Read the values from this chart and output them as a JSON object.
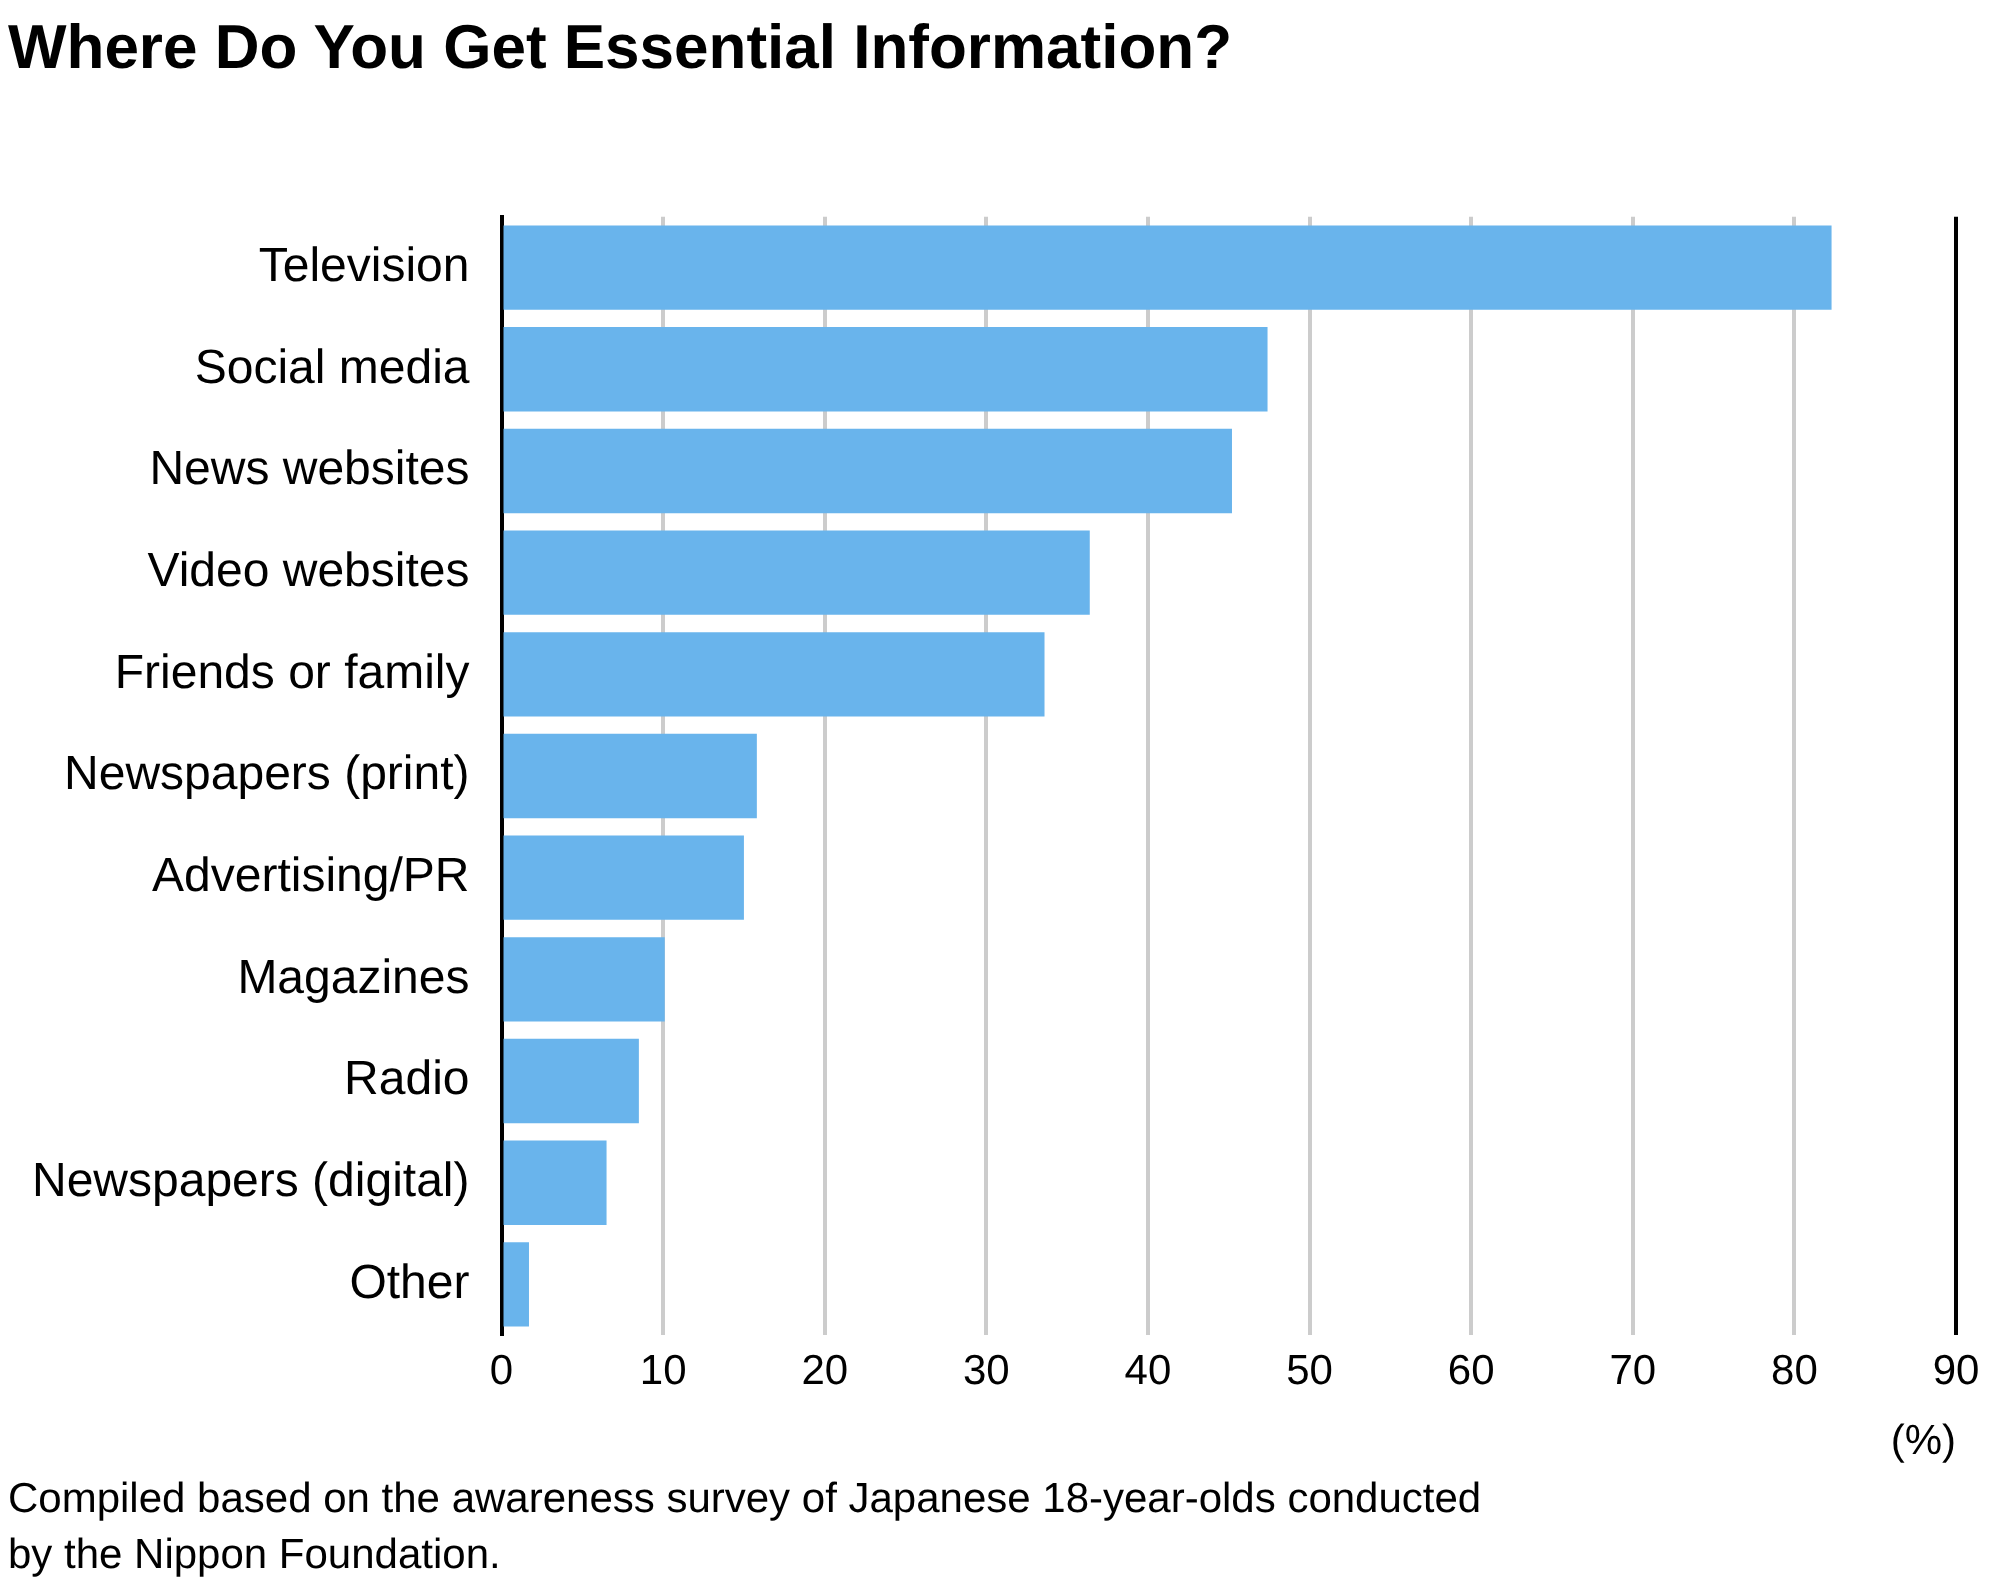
{
  "chart_data": {
    "type": "bar",
    "orientation": "horizontal",
    "title": "Where Do You Get Essential Information?",
    "xlabel": "(%)",
    "categories": [
      "Television",
      "Social media",
      "News websites",
      "Video websites",
      "Friends or family",
      "Newspapers (print)",
      "Advertising/PR",
      "Magazines",
      "Radio",
      "Newspapers (digital)",
      "Other"
    ],
    "values": [
      82.3,
      47.4,
      45.2,
      36.4,
      33.6,
      15.8,
      15.0,
      10.1,
      8.5,
      6.5,
      1.7
    ],
    "color": "#69b4ec",
    "xlim": [
      0,
      90
    ],
    "xticks": [
      0,
      10,
      20,
      30,
      40,
      50,
      60,
      70,
      80,
      90
    ],
    "grid": "x",
    "annotations": [
      "Compiled based on the awareness survey of Japanese 18-year-olds conducted by the Nippon Foundation."
    ]
  }
}
